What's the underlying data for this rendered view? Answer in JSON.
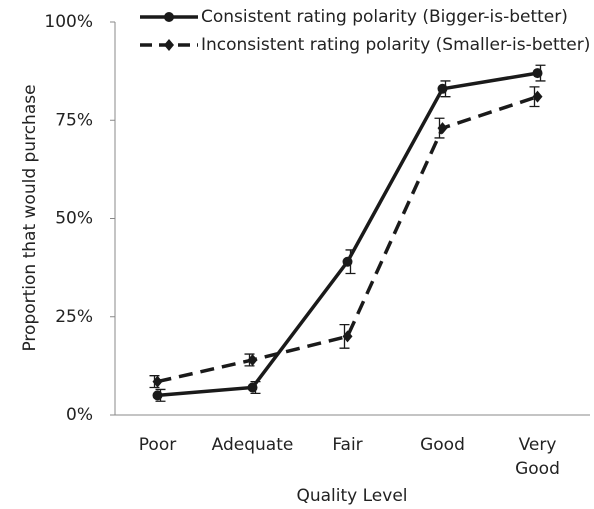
{
  "chart_data": {
    "type": "line",
    "x_label": "Quality Level",
    "y_label": "Proportion that would purchase",
    "categories": [
      "Poor",
      "Adequate",
      "Fair",
      "Good",
      "Very Good"
    ],
    "series": [
      {
        "name": "Consistent rating polarity (Bigger-is-better)",
        "color": "#1a1a1a",
        "dash": false,
        "marker": "circle",
        "values": [
          5,
          7,
          39,
          83,
          87
        ],
        "errors": [
          1.5,
          1.5,
          3,
          2,
          2
        ]
      },
      {
        "name": "Inconsistent rating polarity (Smaller-is-better)",
        "color": "#1a1a1a",
        "dash": true,
        "marker": "diamond",
        "values": [
          8.5,
          14,
          20,
          73,
          81
        ],
        "errors": [
          1.5,
          1.5,
          3,
          2.5,
          2.5
        ]
      }
    ],
    "ylim": [
      0,
      100
    ],
    "yticks": [
      {
        "value": 0,
        "label": "0%"
      },
      {
        "value": 25,
        "label": "25%"
      },
      {
        "value": 50,
        "label": "50%"
      },
      {
        "value": 75,
        "label": "75%"
      },
      {
        "value": 100,
        "label": "100%"
      }
    ],
    "grid": false,
    "legend": "top"
  }
}
